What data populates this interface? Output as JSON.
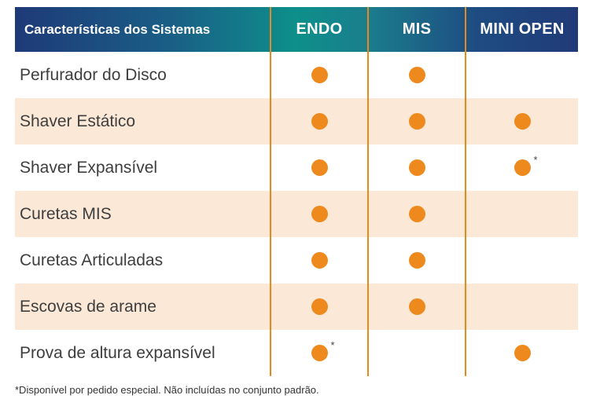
{
  "header": {
    "first": "Características dos Sistemas",
    "columns": [
      "ENDO",
      "MIS",
      "MINI OPEN"
    ]
  },
  "rows": [
    {
      "label": "Perfurador do Disco",
      "marks": [
        true,
        true,
        false
      ],
      "asterisk": [
        false,
        false,
        false
      ]
    },
    {
      "label": "Shaver Estático",
      "marks": [
        true,
        true,
        true
      ],
      "asterisk": [
        false,
        false,
        false
      ]
    },
    {
      "label": "Shaver Expansível",
      "marks": [
        true,
        true,
        true
      ],
      "asterisk": [
        false,
        false,
        true
      ]
    },
    {
      "label": "Curetas MIS",
      "marks": [
        true,
        true,
        false
      ],
      "asterisk": [
        false,
        false,
        false
      ]
    },
    {
      "label": "Curetas Articuladas",
      "marks": [
        true,
        true,
        false
      ],
      "asterisk": [
        false,
        false,
        false
      ]
    },
    {
      "label": "Escovas de arame",
      "marks": [
        true,
        true,
        false
      ],
      "asterisk": [
        false,
        false,
        false
      ]
    },
    {
      "label": "Prova de altura expansível",
      "marks": [
        true,
        false,
        true
      ],
      "asterisk": [
        true,
        false,
        false
      ]
    }
  ],
  "asterisk_symbol": "*",
  "footnote": "*Disponível por pedido especial. Não incluídas no conjunto padrão.",
  "colors": {
    "accent_orange": "#ee8a1d",
    "divider_orange": "#e38b1c",
    "row_alt_bg": "#fbe8d7",
    "header_blue": "#1e3a78",
    "header_teal": "#0d8f8b"
  },
  "icons": {
    "mark": "orange-dot-icon"
  }
}
